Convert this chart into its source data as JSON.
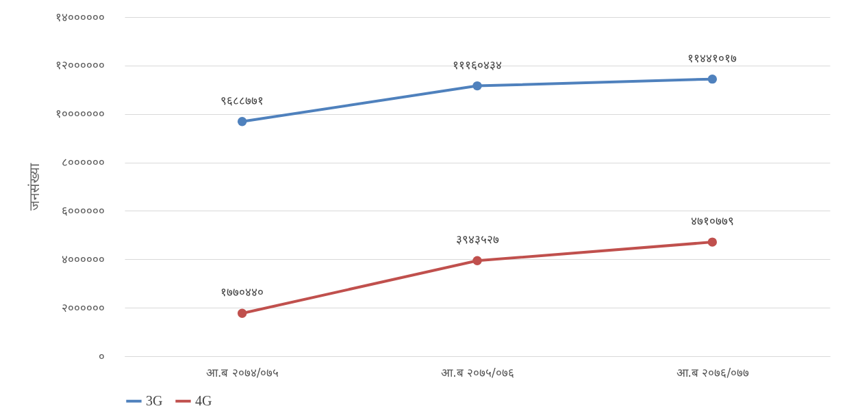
{
  "chart_data": {
    "type": "line",
    "ylabel": "जनसंख्या",
    "categories": [
      "आ.ब २०७४/०७५",
      "आ.ब २०७५/०७६",
      "आ.ब २०७६/०७७"
    ],
    "series": [
      {
        "name": "3G",
        "color": "#4f81bd",
        "values": [
          9688771,
          11160434,
          11441017
        ],
        "value_labels": [
          "९६८८७७१",
          "१११६०४३४",
          "११४४१०१७"
        ]
      },
      {
        "name": "4G",
        "color": "#c0504d",
        "values": [
          1770440,
          3943527,
          4710779
        ],
        "value_labels": [
          "१७७०४४०",
          "३९४३५२७",
          "४७१०७७९"
        ]
      }
    ],
    "ylim": [
      0,
      14000000
    ],
    "yticks": [
      {
        "value": 0,
        "label": "०"
      },
      {
        "value": 2000000,
        "label": "२००००००"
      },
      {
        "value": 4000000,
        "label": "४००००००"
      },
      {
        "value": 6000000,
        "label": "६००००००"
      },
      {
        "value": 8000000,
        "label": "८००००००"
      },
      {
        "value": 10000000,
        "label": "१०००००००"
      },
      {
        "value": 12000000,
        "label": "१२००००००"
      },
      {
        "value": 14000000,
        "label": "१४००००००"
      }
    ],
    "grid": "y",
    "legend": "bottom",
    "marker": "circle",
    "line_style": "solid"
  }
}
